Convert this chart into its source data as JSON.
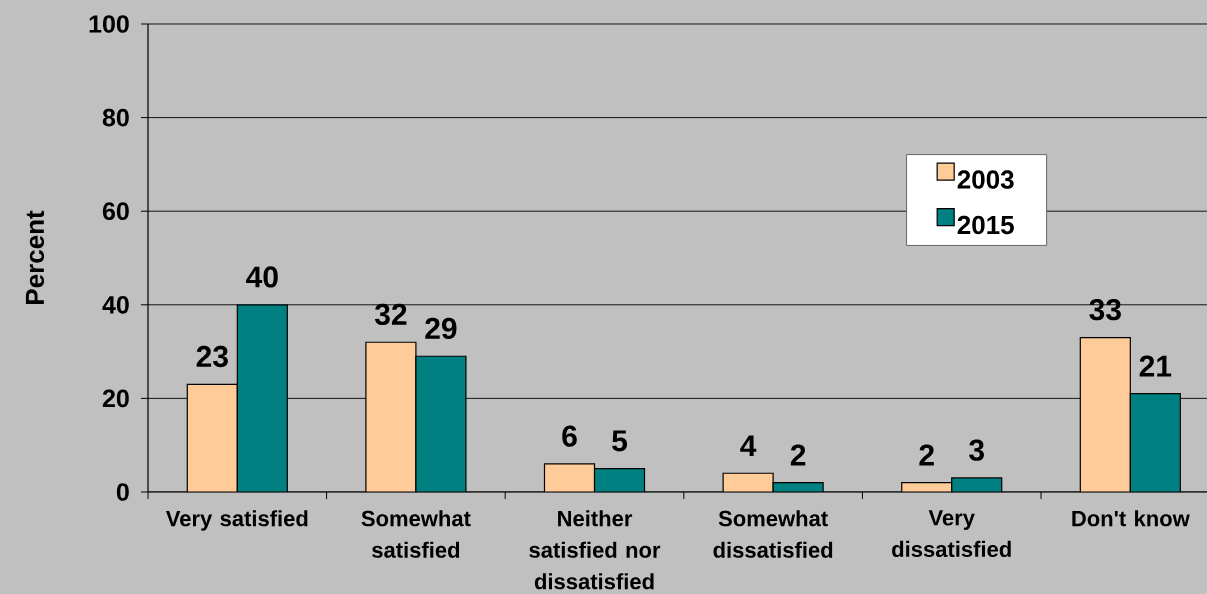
{
  "chart_data": {
    "type": "bar",
    "ylabel": "Percent",
    "categories": [
      "Very satisfied",
      "Somewhat satisfied",
      "Neither satisfied nor dissatisfied",
      "Somewhat dissatisfied",
      "Very dissatisfied",
      "Don't know"
    ],
    "series": [
      {
        "name": "2003",
        "color": "#ffcc99",
        "values": [
          23,
          32,
          6,
          4,
          2,
          33
        ]
      },
      {
        "name": "2015",
        "color": "#008080",
        "values": [
          40,
          29,
          5,
          2,
          3,
          21
        ]
      }
    ],
    "ylim": [
      0,
      100
    ],
    "yticks": [
      0,
      20,
      40,
      60,
      80,
      100
    ],
    "grid": "y",
    "legend": "top right",
    "data_labels": true
  }
}
